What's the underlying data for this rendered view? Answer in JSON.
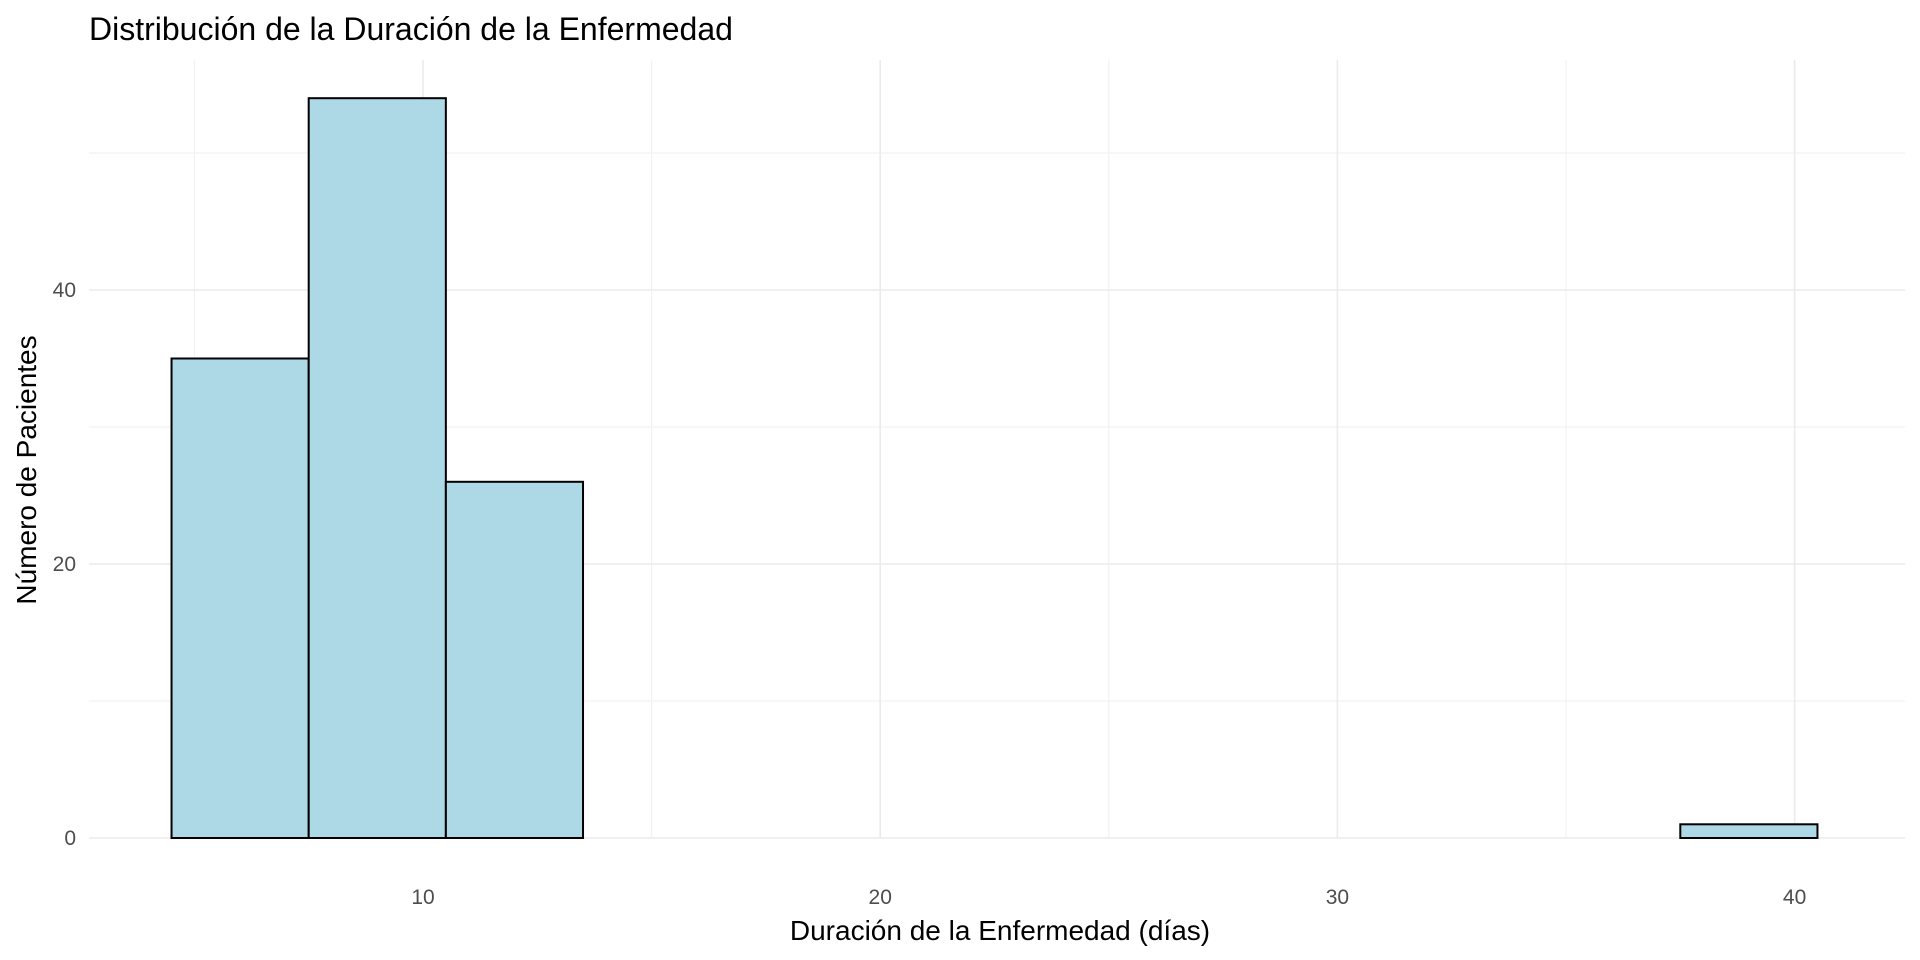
{
  "chart_data": {
    "type": "bar",
    "subtype": "histogram",
    "title": "Distribución de la Duración de la Enfermedad",
    "xlabel": "Duración de la Enfermedad (días)",
    "ylabel": "Número de Pacientes",
    "xlim": [
      4.5,
      41.5
    ],
    "ylim": [
      0,
      60
    ],
    "x_ticks": [
      10,
      20,
      30,
      40
    ],
    "y_ticks": [
      0,
      20,
      40
    ],
    "x_minor_ticks": [
      5,
      15,
      25,
      35
    ],
    "y_minor_ticks": [
      10,
      30,
      50
    ],
    "grid": true,
    "legend": "none",
    "fill_color": "#add8e6",
    "border_color": "#000000",
    "bins": [
      {
        "start": 4.5,
        "end": 7.5,
        "count": 35
      },
      {
        "start": 7.5,
        "end": 10.5,
        "count": 54
      },
      {
        "start": 10.5,
        "end": 13.5,
        "count": 26
      },
      {
        "start": 13.5,
        "end": 16.5,
        "count": 0
      },
      {
        "start": 16.5,
        "end": 19.5,
        "count": 0
      },
      {
        "start": 19.5,
        "end": 22.5,
        "count": 0
      },
      {
        "start": 22.5,
        "end": 25.5,
        "count": 0
      },
      {
        "start": 25.5,
        "end": 28.5,
        "count": 0
      },
      {
        "start": 28.5,
        "end": 31.5,
        "count": 0
      },
      {
        "start": 31.5,
        "end": 34.5,
        "count": 0
      },
      {
        "start": 34.5,
        "end": 37.5,
        "count": 0
      },
      {
        "start": 37.5,
        "end": 40.5,
        "count": 1
      }
    ]
  }
}
